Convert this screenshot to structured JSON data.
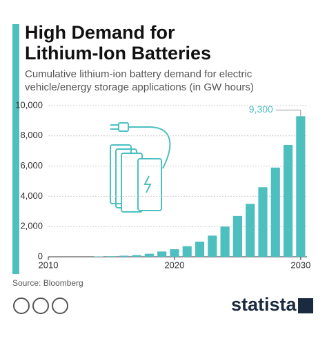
{
  "chart_data": {
    "type": "bar",
    "title": [
      "High Demand for",
      "Lithium-Ion Batteries"
    ],
    "subtitle": [
      "Cumulative lithium-ion battery demand for electric",
      "vehicle/energy storage applications (in GW hours)"
    ],
    "x": [
      2010,
      2011,
      2012,
      2013,
      2014,
      2015,
      2016,
      2017,
      2018,
      2019,
      2020,
      2021,
      2022,
      2023,
      2024,
      2025,
      2026,
      2027,
      2028,
      2029,
      2030
    ],
    "values": [
      0,
      0,
      0,
      0,
      20,
      40,
      70,
      110,
      200,
      350,
      500,
      700,
      1000,
      1400,
      2000,
      2700,
      3500,
      4600,
      5900,
      7400,
      9300
    ],
    "value_labels": [
      null,
      null,
      null,
      null,
      null,
      null,
      null,
      null,
      null,
      null,
      null,
      null,
      null,
      null,
      null,
      null,
      null,
      null,
      null,
      null,
      "9,300"
    ],
    "color": "#4dbfbf",
    "xlim": [
      2010,
      2030.5
    ],
    "xticks": [
      2010,
      2020,
      2030
    ],
    "ylim": [
      0,
      10000
    ],
    "yticks": [
      0,
      {
        "value": 2000,
        "label": "2,000"
      },
      {
        "value": 4000,
        "label": "4,000"
      },
      {
        "value": 6000,
        "label": "6,000"
      },
      {
        "value": 8000,
        "label": "8,000"
      },
      {
        "value": 10000,
        "label": "10,000"
      }
    ],
    "grid": true,
    "source": "Source: Bloomberg",
    "brand": "statista"
  }
}
